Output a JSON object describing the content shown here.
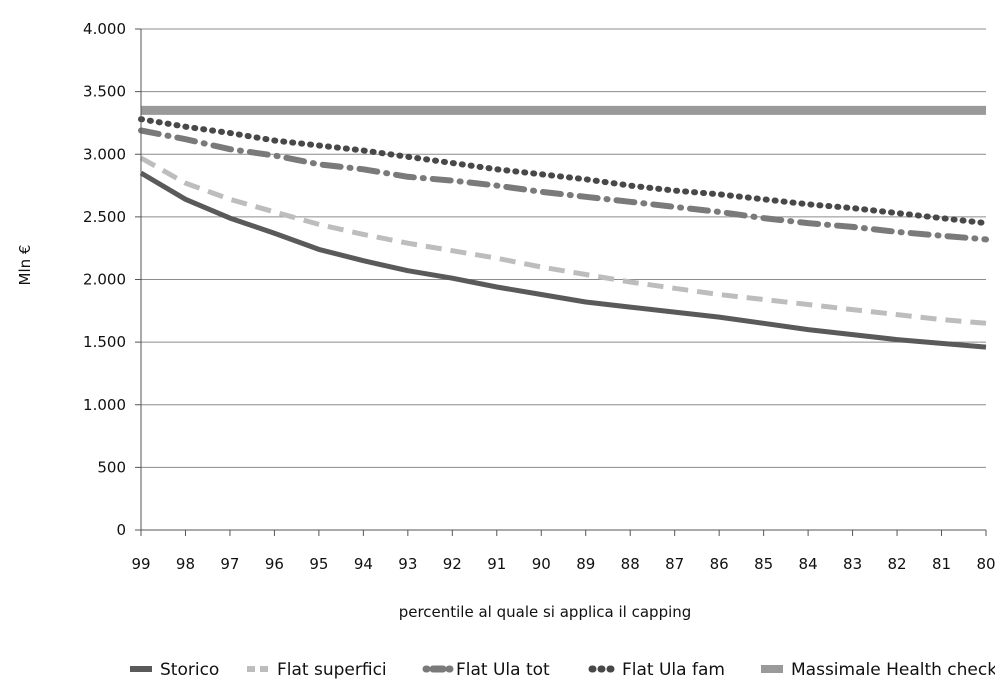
{
  "chart_data": {
    "type": "line",
    "title": "",
    "xlabel": "percentile al quale si applica il capping",
    "ylabel": "Mln €",
    "ylim": [
      0,
      4000
    ],
    "yticks": [
      {
        "value": 0,
        "label": "0"
      },
      {
        "value": 500,
        "label": "500"
      },
      {
        "value": 1000,
        "label": "1.000"
      },
      {
        "value": 1500,
        "label": "1.500"
      },
      {
        "value": 2000,
        "label": "2.000"
      },
      {
        "value": 2500,
        "label": "2.500"
      },
      {
        "value": 3000,
        "label": "3.000"
      },
      {
        "value": 3500,
        "label": "3.500"
      },
      {
        "value": 4000,
        "label": "4.000"
      }
    ],
    "categories": [
      "99",
      "98",
      "97",
      "96",
      "95",
      "94",
      "93",
      "92",
      "91",
      "90",
      "89",
      "88",
      "87",
      "86",
      "85",
      "84",
      "83",
      "82",
      "81",
      "80"
    ],
    "grid": true,
    "legend_position": "bottom",
    "series": [
      {
        "name": "Storico",
        "color": "#5a5a5a",
        "dash": "solid",
        "width": 5,
        "values": [
          2850,
          2640,
          2490,
          2370,
          2240,
          2150,
          2070,
          2010,
          1940,
          1880,
          1820,
          1780,
          1740,
          1700,
          1650,
          1600,
          1560,
          1520,
          1490,
          1460
        ]
      },
      {
        "name": "Flat superfici",
        "color": "#bdbdbd",
        "dash": "dash",
        "width": 5,
        "values": [
          2970,
          2770,
          2640,
          2540,
          2440,
          2360,
          2290,
          2230,
          2170,
          2100,
          2040,
          1980,
          1930,
          1880,
          1840,
          1800,
          1760,
          1720,
          1680,
          1650
        ]
      },
      {
        "name": "Flat Ula tot",
        "color": "#7a7a7a",
        "dash": "dashdot",
        "width": 6,
        "values": [
          3190,
          3120,
          3040,
          2990,
          2920,
          2880,
          2820,
          2790,
          2750,
          2700,
          2660,
          2620,
          2580,
          2540,
          2490,
          2450,
          2420,
          2380,
          2350,
          2320
        ]
      },
      {
        "name": "Flat Ula fam",
        "color": "#484848",
        "dash": "dot",
        "width": 6,
        "values": [
          3280,
          3220,
          3170,
          3110,
          3070,
          3030,
          2980,
          2930,
          2880,
          2840,
          2800,
          2750,
          2710,
          2680,
          2640,
          2600,
          2570,
          2530,
          2490,
          2450
        ]
      },
      {
        "name": "Massimale Health check",
        "color": "#9a9a9a",
        "dash": "solid",
        "width": 9,
        "values": [
          3350,
          3350,
          3350,
          3350,
          3350,
          3350,
          3350,
          3350,
          3350,
          3350,
          3350,
          3350,
          3350,
          3350,
          3350,
          3350,
          3350,
          3350,
          3350,
          3350
        ]
      }
    ]
  }
}
